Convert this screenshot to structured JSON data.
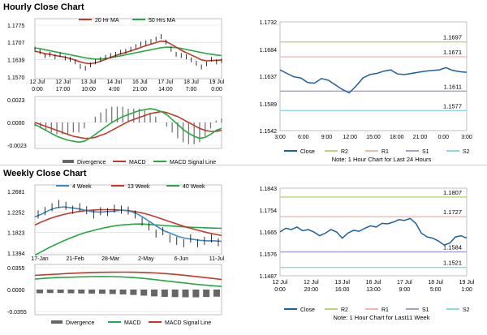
{
  "sections": [
    {
      "title": "Hourly Close Chart"
    },
    {
      "title": "Weekly Close Chart"
    }
  ],
  "colors": {
    "ma_red": "#c0392b",
    "ma_green": "#27a745",
    "ma_blue": "#3d8ac4",
    "close_line": "#1f5f9e",
    "r2": "#b7d77a",
    "r1": "#f2b8b0",
    "s1": "#a89ccb",
    "s2": "#8fd6de",
    "grid": "#d9d9d9"
  },
  "chart_data": [
    {
      "id": "hourly-price",
      "type": "line",
      "legend": [
        "20 Hr MA",
        "50 Hrs MA"
      ],
      "yticks": [
        "1.1775",
        "1.1707",
        "1.1639",
        "1.1570"
      ],
      "ylim": [
        1.157,
        1.1775
      ],
      "xticks": [
        [
          "12 Jul",
          "0:00"
        ],
        [
          "12 Jul",
          "17:00"
        ],
        [
          "13 Jul",
          "10:00"
        ],
        [
          "14 Jul",
          "4:00"
        ],
        [
          "16 Jul",
          "21:00"
        ],
        [
          "17 Jul",
          "14:00"
        ],
        [
          "18 Jul",
          "7:00"
        ],
        [
          "19 Jul",
          "0:00"
        ]
      ],
      "close": [
        1.168,
        1.167,
        1.1655,
        1.166,
        1.165,
        1.1658,
        1.1645,
        1.164,
        1.163,
        1.1612,
        1.1605,
        1.1618,
        1.163,
        1.164,
        1.1648,
        1.1655,
        1.166,
        1.1668,
        1.1672,
        1.168,
        1.169,
        1.17,
        1.1705,
        1.171,
        1.172,
        1.173,
        1.1708,
        1.168,
        1.166,
        1.1655,
        1.165,
        1.1638,
        1.1625,
        1.161,
        1.1622,
        1.164,
        1.163,
        1.1635
      ],
      "ma20": [
        1.1672,
        1.1668,
        1.1662,
        1.166,
        1.1655,
        1.1652,
        1.1648,
        1.1643,
        1.1637,
        1.163,
        1.1625,
        1.1623,
        1.1626,
        1.1632,
        1.164,
        1.1648,
        1.1655,
        1.1662,
        1.1667,
        1.1673,
        1.168,
        1.1687,
        1.1694,
        1.17,
        1.1706,
        1.1712,
        1.171,
        1.17,
        1.1688,
        1.1676,
        1.1666,
        1.1657,
        1.1648,
        1.1638,
        1.1634,
        1.1635,
        1.1636,
        1.1637
      ],
      "ma50": [
        1.1685,
        1.1682,
        1.1678,
        1.1674,
        1.167,
        1.1666,
        1.1662,
        1.1658,
        1.1654,
        1.165,
        1.1646,
        1.1643,
        1.1641,
        1.1641,
        1.1643,
        1.1646,
        1.165,
        1.1654,
        1.1658,
        1.1662,
        1.1666,
        1.167,
        1.1674,
        1.1678,
        1.1682,
        1.1686,
        1.1688,
        1.1688,
        1.1686,
        1.1683,
        1.1679,
        1.1675,
        1.1671,
        1.1667,
        1.1663,
        1.166,
        1.1657,
        1.1655
      ]
    },
    {
      "id": "hourly-macd",
      "type": "bar+line",
      "yticks": [
        "0.0023",
        "0.0000",
        "-0.0023"
      ],
      "ylim": [
        -0.0023,
        0.0023
      ],
      "legend": [
        "Divergence",
        "MACD",
        "MACD Signal Line"
      ],
      "macd": [
        -0.0002,
        -0.0005,
        -0.0008,
        -0.0011,
        -0.0014,
        -0.0016,
        -0.0018,
        -0.0019,
        -0.002,
        -0.0019,
        -0.0016,
        -0.0012,
        -0.0008,
        -0.0004,
        0.0,
        0.0003,
        0.0006,
        0.0008,
        0.001,
        0.0012,
        0.0013,
        0.0014,
        0.0013,
        0.0011,
        0.0008,
        0.0003,
        -0.0002,
        -0.0007,
        -0.0011,
        -0.0014,
        -0.0016,
        -0.0015,
        -0.0012,
        -0.0008,
        -0.0006
      ],
      "signal": [
        0.0,
        -0.0002,
        -0.0004,
        -0.0006,
        -0.0008,
        -0.001,
        -0.0012,
        -0.0014,
        -0.0015,
        -0.0016,
        -0.0016,
        -0.0015,
        -0.0013,
        -0.0011,
        -0.0008,
        -0.0005,
        -0.0002,
        0.0001,
        0.0003,
        0.0005,
        0.0007,
        0.0009,
        0.001,
        0.0011,
        0.001,
        0.0008,
        0.0006,
        0.0003,
        0.0,
        -0.0003,
        -0.0006,
        -0.0008,
        -0.0009,
        -0.0009,
        -0.0008
      ]
    },
    {
      "id": "hourly-levels",
      "type": "line",
      "yticks": [
        "1.1732",
        "1.1684",
        "1.1637",
        "1.1589",
        "1.1542"
      ],
      "ylim": [
        1.1542,
        1.1732
      ],
      "xticks": [
        "3:00",
        "6:00",
        "9:00",
        "12:00",
        "15:00",
        "18:00",
        "21:00",
        "0:00",
        "3:00"
      ],
      "levels": [
        {
          "name": "R2",
          "value": 1.1697,
          "label": "1.1697"
        },
        {
          "name": "R1",
          "value": 1.1671,
          "label": "1.1671"
        },
        {
          "name": "S1",
          "value": 1.1611,
          "label": "1.1611"
        },
        {
          "name": "S2",
          "value": 1.1577,
          "label": "1.1577"
        }
      ],
      "close": [
        1.1648,
        1.1642,
        1.1636,
        1.1634,
        1.1626,
        1.1625,
        1.1633,
        1.163,
        1.1622,
        1.1614,
        1.1608,
        1.162,
        1.1634,
        1.164,
        1.1642,
        1.1646,
        1.1648,
        1.1641,
        1.164,
        1.1642,
        1.1644,
        1.1646,
        1.1647,
        1.1648,
        1.1652,
        1.1647,
        1.1645,
        1.1644
      ],
      "legend": [
        "Close",
        "R2",
        "R1",
        "S1",
        "S2"
      ],
      "note": "Note: 1 Hour Chart for Last 24 Hours"
    },
    {
      "id": "weekly-price",
      "type": "line",
      "legend": [
        "4 Week",
        "13 Week",
        "40 Week"
      ],
      "yticks": [
        "1.2681",
        "1.2252",
        "1.1823",
        "1.1394"
      ],
      "ylim": [
        1.1394,
        1.2681
      ],
      "xticks": [
        "17-Jan",
        "21-Feb",
        "28-Mar",
        "2-May",
        "6-Jun",
        "11-Jul"
      ],
      "close": [
        1.22,
        1.227,
        1.235,
        1.242,
        1.238,
        1.23,
        1.235,
        1.229,
        1.22,
        1.227,
        1.225,
        1.232,
        1.23,
        1.228,
        1.22,
        1.205,
        1.195,
        1.18,
        1.185,
        1.17,
        1.165,
        1.16,
        1.17,
        1.16,
        1.165,
        1.17,
        1.162
      ],
      "ma4": [
        1.215,
        1.221,
        1.229,
        1.234,
        1.236,
        1.234,
        1.232,
        1.229,
        1.226,
        1.225,
        1.226,
        1.227,
        1.229,
        1.228,
        1.223,
        1.215,
        1.205,
        1.195,
        1.186,
        1.18,
        1.174,
        1.17,
        1.168,
        1.166,
        1.165,
        1.165,
        1.164
      ],
      "ma13": [
        1.198,
        1.205,
        1.211,
        1.216,
        1.22,
        1.223,
        1.226,
        1.228,
        1.229,
        1.23,
        1.23,
        1.23,
        1.229,
        1.228,
        1.226,
        1.223,
        1.219,
        1.214,
        1.209,
        1.204,
        1.199,
        1.194,
        1.19,
        1.186,
        1.182,
        1.179,
        1.176
      ],
      "ma40": [
        1.135,
        1.143,
        1.151,
        1.158,
        1.165,
        1.171,
        1.177,
        1.182,
        1.186,
        1.19,
        1.193,
        1.196,
        1.198,
        1.199,
        1.2,
        1.2,
        1.199,
        1.198,
        1.197,
        1.196,
        1.195,
        1.194,
        1.193,
        1.1925,
        1.192,
        1.1915,
        1.191
      ]
    },
    {
      "id": "weekly-macd",
      "type": "bar+line",
      "yticks": [
        "0.0355",
        "0.0000",
        "-0.0355"
      ],
      "ylim": [
        -0.0355,
        0.0355
      ],
      "legend": [
        "Divergence",
        "MACD",
        "MACD Signal Line"
      ],
      "macd": [
        0.017,
        0.0185,
        0.0195,
        0.02,
        0.0205,
        0.021,
        0.0212,
        0.021,
        0.0205,
        0.0195,
        0.018,
        0.016,
        0.014,
        0.012,
        0.01,
        0.008,
        0.0065,
        0.005
      ],
      "signal": [
        0.023,
        0.024,
        0.025,
        0.026,
        0.0268,
        0.0275,
        0.028,
        0.0282,
        0.0283,
        0.0282,
        0.0278,
        0.027,
        0.0258,
        0.0242,
        0.0225,
        0.0205,
        0.0185,
        0.0165
      ]
    },
    {
      "id": "weekly-levels",
      "type": "line",
      "yticks": [
        "1.1843",
        "1.1754",
        "1.1665",
        "1.1576",
        "1.1487"
      ],
      "ylim": [
        1.1487,
        1.1843
      ],
      "xticks": [
        [
          "12 Jul",
          "0:00"
        ],
        [
          "12 Jul",
          "20:00"
        ],
        [
          "13 Jul",
          "16:00"
        ],
        [
          "16 Jul",
          "13:00"
        ],
        [
          "17 Jul",
          "9:00"
        ],
        [
          "18 Jul",
          "5:00"
        ],
        [
          "19 Jul",
          "1:00"
        ]
      ],
      "levels": [
        {
          "name": "R2",
          "value": 1.1807,
          "label": "1.1807"
        },
        {
          "name": "R1",
          "value": 1.1727,
          "label": "1.1727"
        },
        {
          "name": "S1",
          "value": 1.1584,
          "label": "1.1584"
        },
        {
          "name": "S2",
          "value": 1.1521,
          "label": "1.1521"
        }
      ],
      "close": [
        1.1665,
        1.168,
        1.1675,
        1.1685,
        1.167,
        1.1675,
        1.1665,
        1.165,
        1.166,
        1.1675,
        1.1665,
        1.164,
        1.166,
        1.1672,
        1.1668,
        1.168,
        1.169,
        1.1685,
        1.17,
        1.1698,
        1.1705,
        1.1715,
        1.1712,
        1.172,
        1.17,
        1.166,
        1.1645,
        1.164,
        1.1628,
        1.1612,
        1.162,
        1.1645,
        1.165,
        1.164
      ],
      "legend": [
        "Close",
        "R2",
        "R1",
        "S1",
        "S2"
      ],
      "note": "Note: 1 Hour Chart for Last11 Week"
    }
  ]
}
